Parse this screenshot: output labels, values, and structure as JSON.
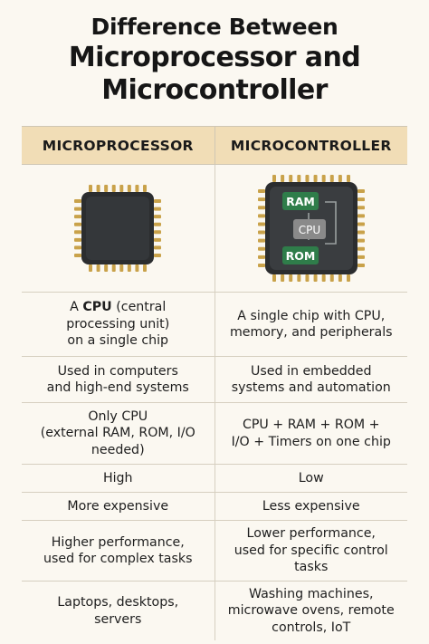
{
  "title": {
    "line1": "Difference Between",
    "line2": "Microprocessor and",
    "line3": "Microcontroller"
  },
  "columns": {
    "left": "MICROPROCESSOR",
    "right": "MICROCONTROLLER"
  },
  "chip_labels": {
    "ram": "RAM",
    "cpu": "CPU",
    "rom": "ROM"
  },
  "rows": [
    {
      "left_pre": "A ",
      "left_bold": "CPU",
      "left_post": " (central\nprocessing unit)\non a single chip",
      "right": "A single chip with CPU,\nmemory, and peripherals"
    },
    {
      "left": "Used in computers\nand high-end systems",
      "right": "Used in embedded\nsystems and automation"
    },
    {
      "left": "Only CPU\n(external RAM, ROM, I/O\nneeded)",
      "right": "CPU + RAM + ROM +\nI/O + Timers on one chip"
    },
    {
      "left": "High",
      "right": "Low"
    },
    {
      "left": "More expensive",
      "right": "Less expensive"
    },
    {
      "left": "Higher performance,\nused for complex tasks",
      "right": "Lower performance,\nused for specific control\ntasks"
    },
    {
      "left": "Laptops, desktops,\nservers",
      "right": "Washing machines,\nmicrowave ovens, remote\ncontrols, IoT"
    }
  ],
  "colors": {
    "background": "#fbf8f1",
    "header": "#f1ddb6",
    "chip_body": "#2b2d2f",
    "pins": "#c9a24a",
    "module_green": "#2f7d4a",
    "module_gray": "#8a8a8a"
  }
}
